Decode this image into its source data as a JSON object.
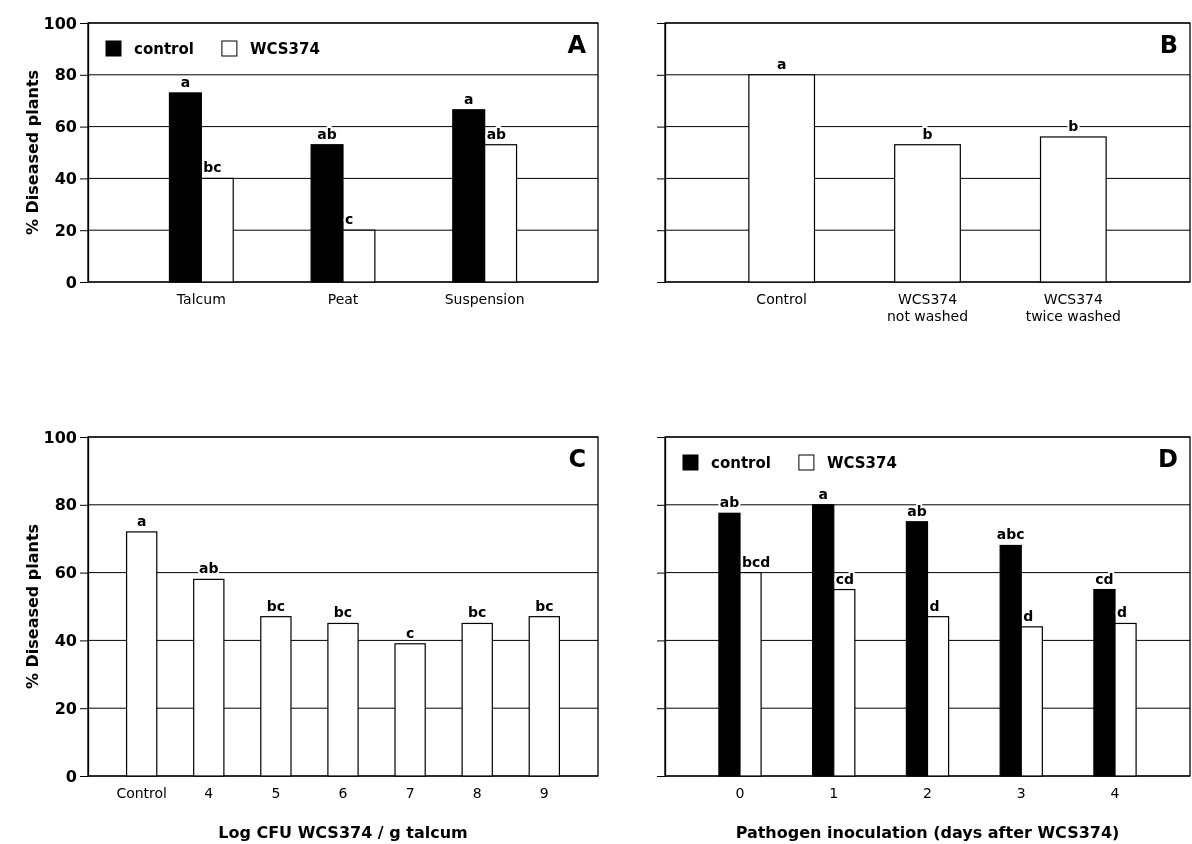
{
  "chart_data": [
    {
      "type": "bar",
      "title": "A",
      "categories": [
        "Talcum",
        "Peat",
        "Suspension"
      ],
      "series": [
        {
          "name": "control",
          "color": "#000000",
          "values": [
            73,
            53,
            66.5
          ],
          "value_labels": [
            "a",
            "ab",
            "a"
          ]
        },
        {
          "name": "WCS374",
          "color": "#ffffff",
          "values": [
            40,
            20,
            53
          ],
          "value_labels": [
            "bc",
            "c",
            "ab"
          ]
        }
      ],
      "ylabel": "% Diseased plants",
      "ylim": [
        0,
        100
      ],
      "yticks": [
        0,
        20,
        40,
        60,
        80,
        100
      ],
      "grid": "y",
      "legend": "top left"
    },
    {
      "type": "bar",
      "title": "B",
      "categories": [
        "Control",
        "WCS374\nnot washed",
        "WCS374\ntwice washed"
      ],
      "series": [
        {
          "color": "#ffffff",
          "values": [
            80,
            53,
            56
          ],
          "value_labels": [
            "a",
            "b",
            "b"
          ]
        }
      ],
      "ylim": [
        0,
        100
      ],
      "yticks": [
        0,
        20,
        40,
        60,
        80,
        100
      ],
      "grid": "y",
      "tick_labels": "x"
    },
    {
      "type": "bar",
      "title": "C",
      "categories": [
        "Control",
        "4",
        "5",
        "6",
        "7",
        "8",
        "9"
      ],
      "series": [
        {
          "color": "#ffffff",
          "values": [
            72,
            58,
            47,
            45,
            39,
            45,
            47
          ],
          "value_labels": [
            "a",
            "ab",
            "bc",
            "bc",
            "c",
            "bc",
            "bc"
          ]
        }
      ],
      "xlabel": "Log CFU WCS374 / g talcum",
      "ylabel": "% Diseased plants",
      "ylim": [
        0,
        100
      ],
      "yticks": [
        0,
        20,
        40,
        60,
        80,
        100
      ],
      "grid": "y"
    },
    {
      "type": "bar",
      "title": "D",
      "categories": [
        "0",
        "1",
        "2",
        "3",
        "4"
      ],
      "series": [
        {
          "name": "control",
          "color": "#000000",
          "values": [
            77.5,
            80,
            75,
            68,
            55
          ],
          "value_labels": [
            "ab",
            "a",
            "ab",
            "abc",
            "cd"
          ]
        },
        {
          "name": "WCS374",
          "color": "#ffffff",
          "values": [
            60,
            55,
            47,
            44,
            45
          ],
          "value_labels": [
            "bcd",
            "cd",
            "d",
            "d",
            "d"
          ]
        }
      ],
      "xlabel": "Pathogen inoculation (days after WCS374)",
      "ylim": [
        0,
        100
      ],
      "yticks": [
        0,
        20,
        40,
        60,
        80,
        100
      ],
      "grid": "y",
      "legend": "top left",
      "tick_labels": "x"
    }
  ]
}
